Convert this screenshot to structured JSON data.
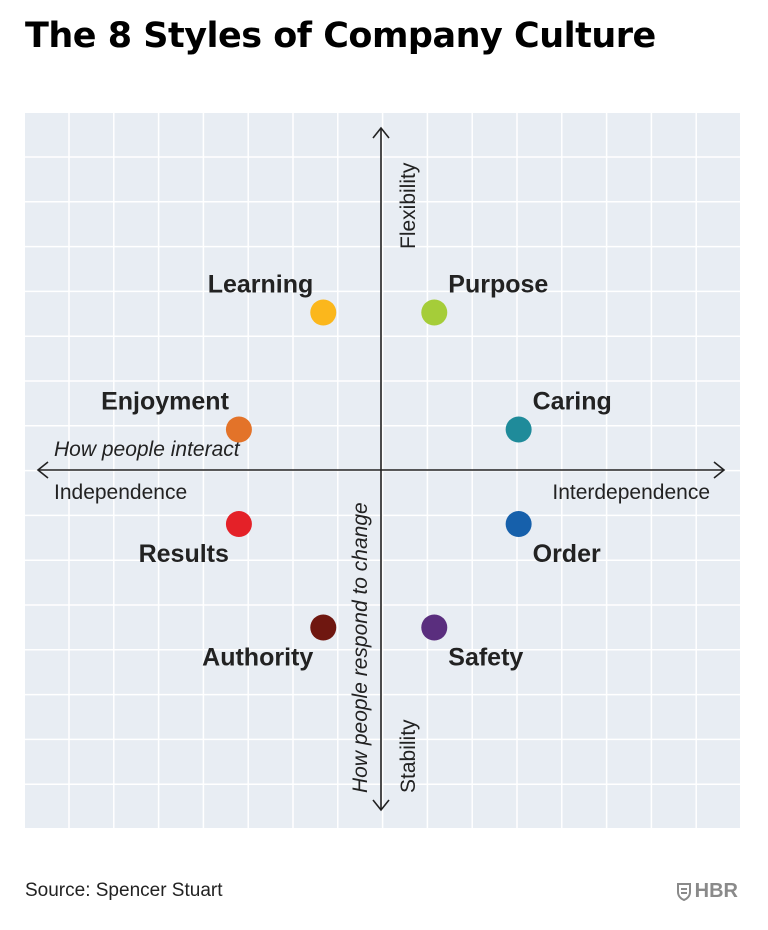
{
  "title": "The 8 Styles of Company Culture",
  "source": "Source: Spencer Stuart",
  "logo_text": "HBR",
  "colors": {
    "background": "#e8edf3",
    "grid": "#ffffff",
    "axis": "#222222",
    "label": "#222222",
    "logo": "#8a8a8a"
  },
  "chart_data": {
    "type": "scatter",
    "title": "The 8 Styles of Company Culture",
    "xlim": [
      -5,
      5
    ],
    "ylim": [
      -5,
      5
    ],
    "grid": true,
    "legend": "none",
    "x_axis": {
      "label": "How people interact",
      "negative_end": "Independence",
      "positive_end": "Interdependence"
    },
    "y_axis": {
      "label": "How people respond to change",
      "positive_end": "Flexibility",
      "negative_end": "Stability"
    },
    "points": [
      {
        "label": "Learning",
        "x": -1.3,
        "y": 3.5,
        "color": "#fbb71c",
        "label_pos": "above-left"
      },
      {
        "label": "Purpose",
        "x": 1.2,
        "y": 3.5,
        "color": "#a5cd39",
        "label_pos": "above-right"
      },
      {
        "label": "Enjoyment",
        "x": -3.2,
        "y": 0.9,
        "color": "#e37329",
        "label_pos": "above-left"
      },
      {
        "label": "Caring",
        "x": 3.1,
        "y": 0.9,
        "color": "#1f8b9a",
        "label_pos": "above-right"
      },
      {
        "label": "Results",
        "x": -3.2,
        "y": -1.2,
        "color": "#e42128",
        "label_pos": "below-left"
      },
      {
        "label": "Order",
        "x": 3.1,
        "y": -1.2,
        "color": "#1660ab",
        "label_pos": "below-right"
      },
      {
        "label": "Authority",
        "x": -1.3,
        "y": -3.5,
        "color": "#6f1710",
        "label_pos": "below-left"
      },
      {
        "label": "Safety",
        "x": 1.2,
        "y": -3.5,
        "color": "#5a2e7e",
        "label_pos": "below-right"
      }
    ]
  }
}
